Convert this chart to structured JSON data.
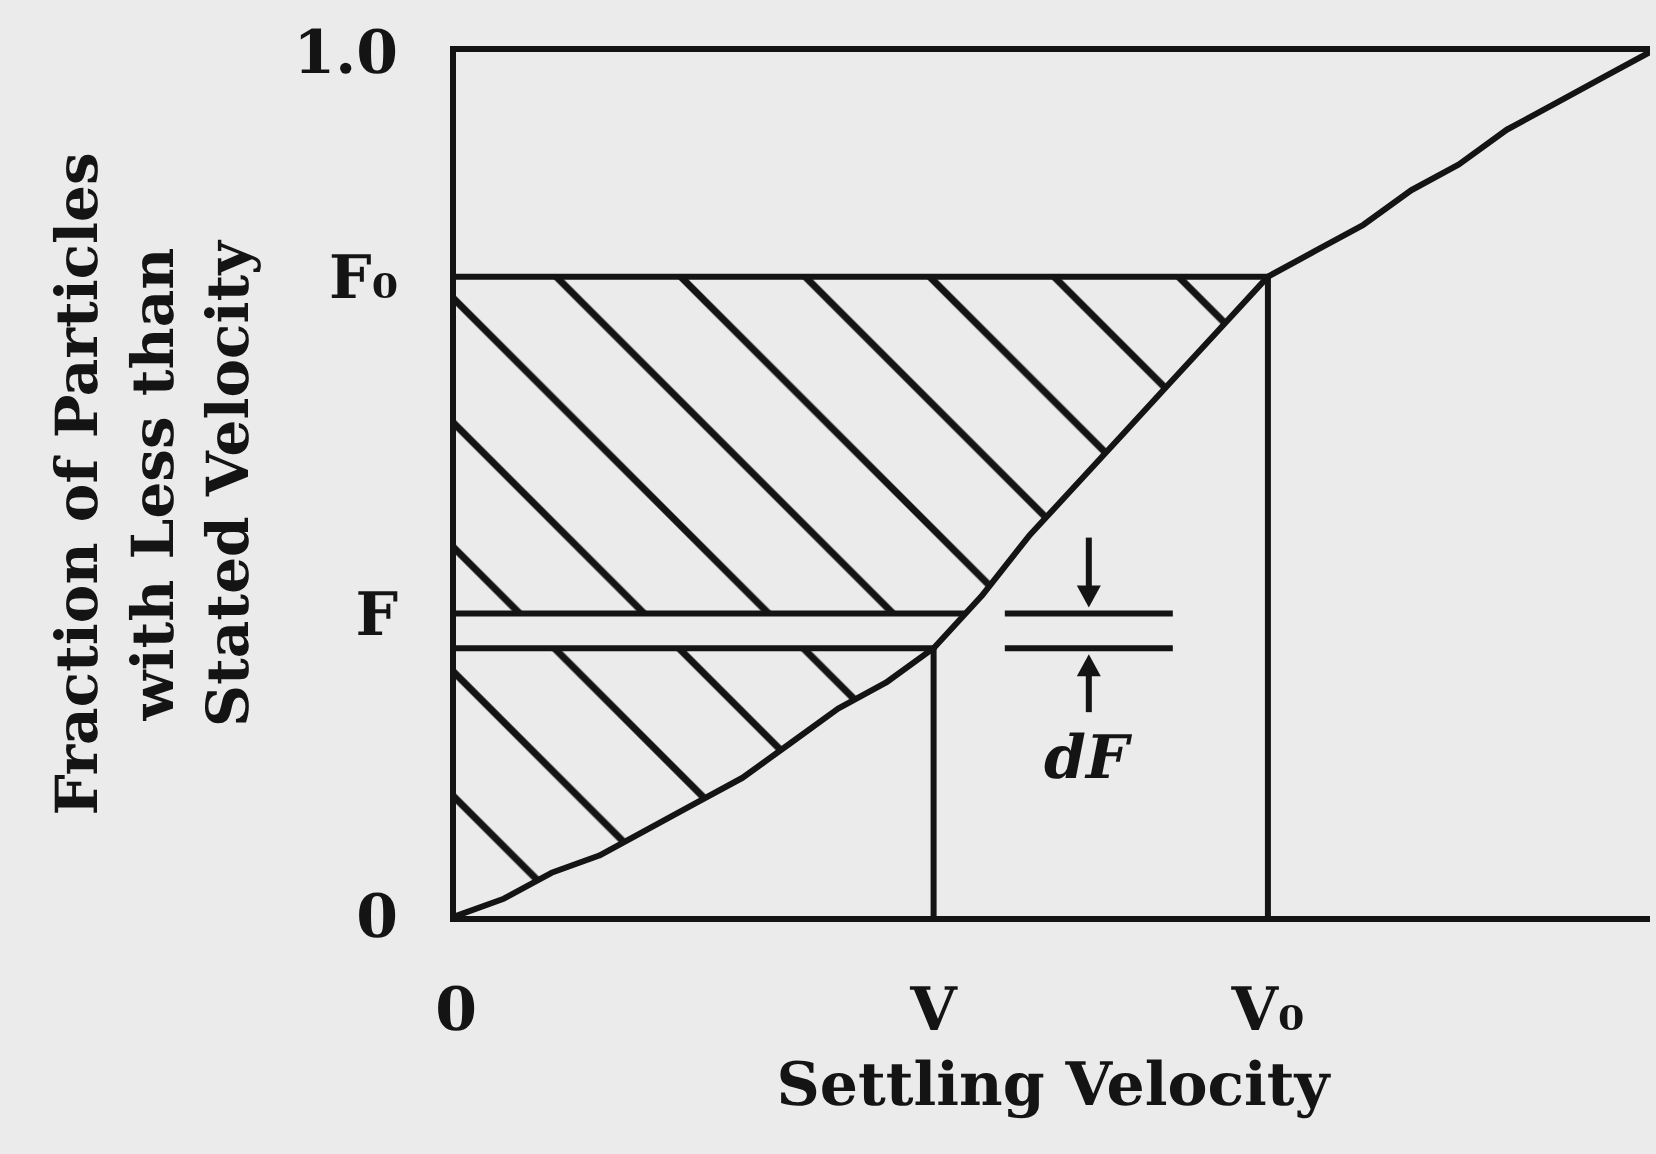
{
  "chart_data": {
    "type": "line",
    "xlabel": "Settling Velocity",
    "ylabel": "Fraction of Particles\nwith Less than\nStated Velocity",
    "categories": [
      "0",
      null,
      null,
      null,
      null,
      null,
      null,
      null,
      null,
      null,
      "V",
      null,
      null,
      null,
      null,
      null,
      null,
      "V₀",
      null,
      null,
      null,
      null,
      null,
      null,
      null,
      null
    ],
    "ylim": [
      0,
      1
    ],
    "yticks": [
      0,
      {
        "value": 0.35,
        "label": "F"
      },
      {
        "value": 0.74,
        "label": "F₀"
      },
      {
        "value": 1,
        "label": "1.0"
      }
    ],
    "series": [
      {
        "color": "#141414",
        "values": [
          0,
          0.02,
          0.05,
          0.07,
          0.1,
          0.13,
          0.16,
          0.2,
          0.24,
          0.27,
          0.31,
          0.37,
          0.44,
          0.5,
          0.56,
          0.62,
          0.68,
          0.74,
          0.77,
          0.8,
          0.84,
          0.87,
          0.91,
          0.94,
          0.97,
          1
        ]
      },
      {
        "color": "#141414",
        "values": [
          0.31,
          0.31,
          0.31,
          0.31,
          0.31,
          0.31,
          0.31,
          0.31,
          0.31,
          0.31,
          0.31,
          null,
          null,
          null,
          null,
          null,
          null,
          null,
          null,
          null,
          null,
          null,
          null,
          null,
          null,
          null
        ],
        "lower": [
          0,
          0.02,
          0.05,
          0.07,
          0.1,
          0.13,
          0.16,
          0.2,
          0.24,
          0.27,
          0.31,
          null,
          null,
          null,
          null,
          null,
          null,
          null,
          null,
          null,
          null,
          null,
          null,
          null,
          null,
          null
        ],
        "upper": [
          0.31,
          0.31,
          0.31,
          0.31,
          0.31,
          0.31,
          0.31,
          0.31,
          0.31,
          0.31,
          0.31,
          null,
          null,
          null,
          null,
          null,
          null,
          null,
          null,
          null,
          null,
          null,
          null,
          null,
          null,
          null
        ]
      },
      {
        "color": "#141414",
        "values": [
          0.74,
          0.74,
          0.74,
          0.74,
          0.74,
          0.74,
          0.74,
          0.74,
          0.74,
          0.74,
          0.74,
          0.74,
          0.74,
          0.74,
          0.74,
          0.74,
          0.74,
          0.74,
          null,
          null,
          null,
          null,
          null,
          null,
          null,
          null
        ],
        "lower": [
          0.35,
          0.35,
          0.35,
          0.35,
          0.35,
          0.35,
          0.35,
          0.35,
          0.35,
          0.35,
          0.35,
          0.37,
          0.44,
          0.5,
          0.56,
          0.62,
          0.68,
          0.74,
          null,
          null,
          null,
          null,
          null,
          null,
          null,
          null
        ],
        "upper": [
          0.74,
          0.74,
          0.74,
          0.74,
          0.74,
          0.74,
          0.74,
          0.74,
          0.74,
          0.74,
          0.74,
          0.74,
          0.74,
          0.74,
          0.74,
          0.74,
          0.74,
          0.74,
          null,
          null,
          null,
          null,
          null,
          null,
          null,
          null
        ]
      }
    ],
    "ref_lines": [
      {
        "axis": "y",
        "value": 0.35,
        "color": "#141414"
      },
      {
        "axis": "x",
        "value": "V",
        "color": "#141414"
      },
      {
        "axis": "x",
        "value": "V₀",
        "color": "#141414"
      }
    ],
    "annotations": [
      "dF"
    ],
    "grid": false
  }
}
